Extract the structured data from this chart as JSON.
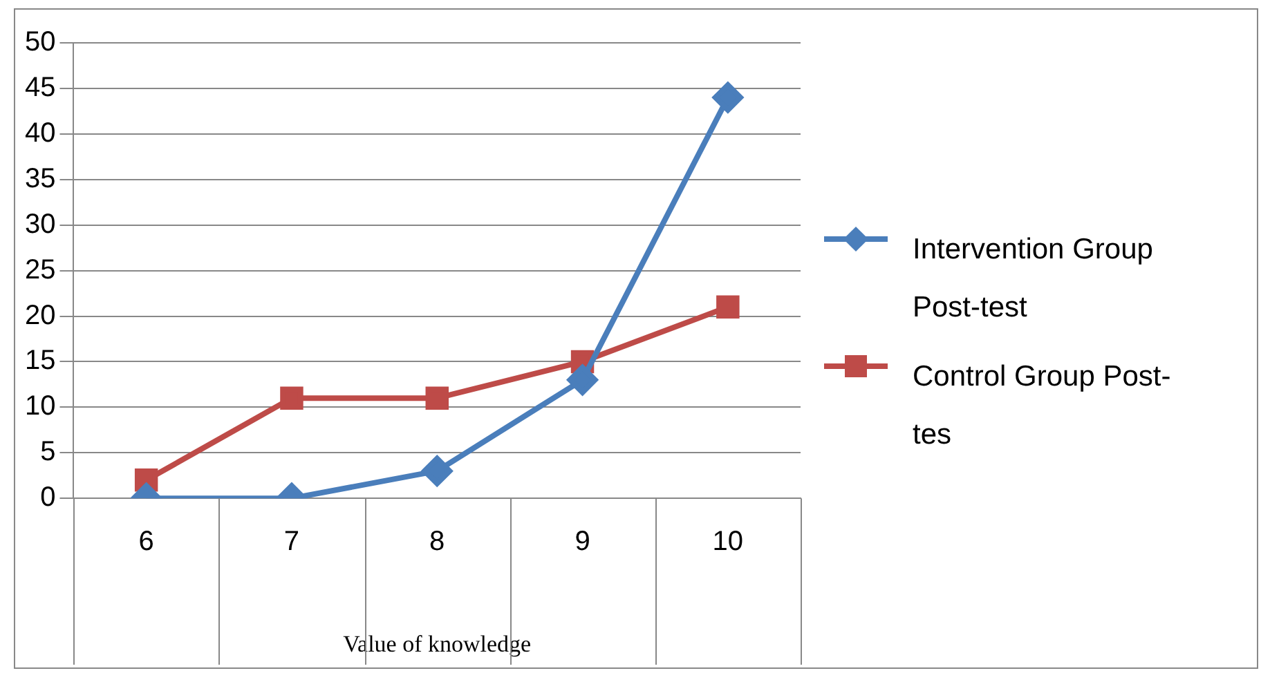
{
  "chart_data": {
    "type": "line",
    "xlabel": "Value of knowledge",
    "categories": [
      "6",
      "7",
      "8",
      "9",
      "10"
    ],
    "series": [
      {
        "name": "Intervention Group Post-test",
        "color": "#4a7ebb",
        "marker": "diamond",
        "values": [
          0,
          0,
          3,
          13,
          44
        ]
      },
      {
        "name": "Control Group Post-tes",
        "color": "#be4b48",
        "marker": "square",
        "values": [
          2,
          11,
          11,
          15,
          21
        ]
      }
    ],
    "ylim": [
      0,
      50
    ],
    "yticks": [
      0,
      5,
      10,
      15,
      20,
      25,
      30,
      35,
      40,
      45,
      50
    ],
    "grid": "y",
    "legend": "right",
    "line_style": "solid"
  }
}
